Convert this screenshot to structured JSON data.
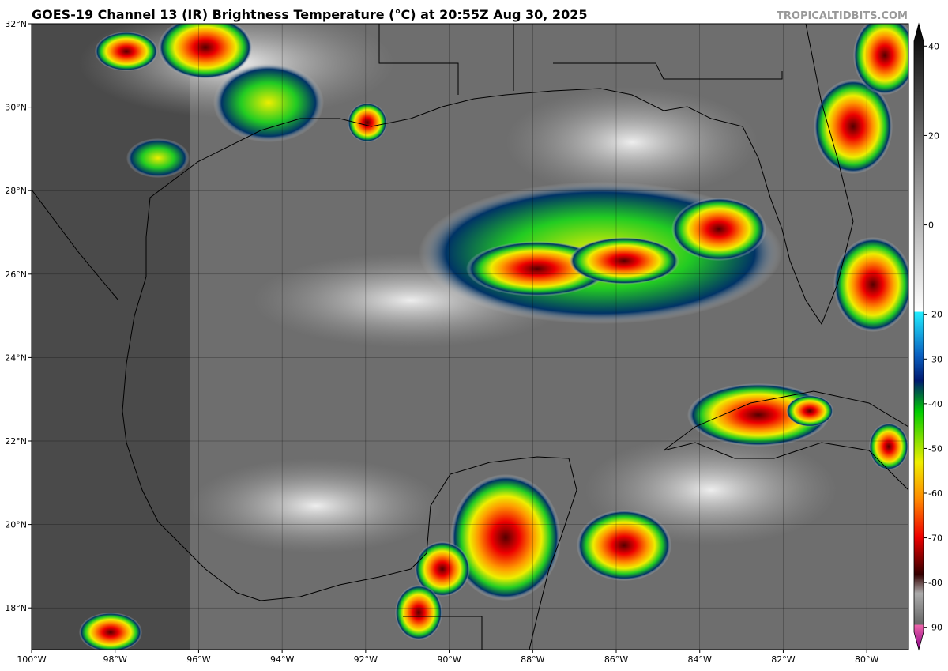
{
  "map": {
    "title": "GOES-19 Channel 13 (IR) Brightness Temperature (°C) at 20:55Z Aug 30, 2025",
    "watermark": "TROPICALTIDBITS.COM",
    "xlim": [
      -100,
      -79
    ],
    "ylim": [
      17,
      32
    ],
    "xticks": [
      {
        "value": -100,
        "label": "100°W"
      },
      {
        "value": -98,
        "label": "98°W"
      },
      {
        "value": -96,
        "label": "96°W"
      },
      {
        "value": -94,
        "label": "94°W"
      },
      {
        "value": -92,
        "label": "92°W"
      },
      {
        "value": -90,
        "label": "90°W"
      },
      {
        "value": -88,
        "label": "88°W"
      },
      {
        "value": -86,
        "label": "86°W"
      },
      {
        "value": -84,
        "label": "84°W"
      },
      {
        "value": -82,
        "label": "82°W"
      },
      {
        "value": -80,
        "label": "80°W"
      }
    ],
    "yticks": [
      {
        "value": 18,
        "label": "18°N"
      },
      {
        "value": 20,
        "label": "20°N"
      },
      {
        "value": 22,
        "label": "22°N"
      },
      {
        "value": 24,
        "label": "24°N"
      },
      {
        "value": 26,
        "label": "26°N"
      },
      {
        "value": 28,
        "label": "28°N"
      },
      {
        "value": 30,
        "label": "30°N"
      },
      {
        "value": 32,
        "label": "32°N"
      }
    ],
    "colorbar": {
      "lim": [
        -95,
        45
      ],
      "ticks": [
        40,
        20,
        0,
        -20,
        -30,
        -40,
        -50,
        -60,
        -70,
        -80,
        -90
      ]
    }
  }
}
